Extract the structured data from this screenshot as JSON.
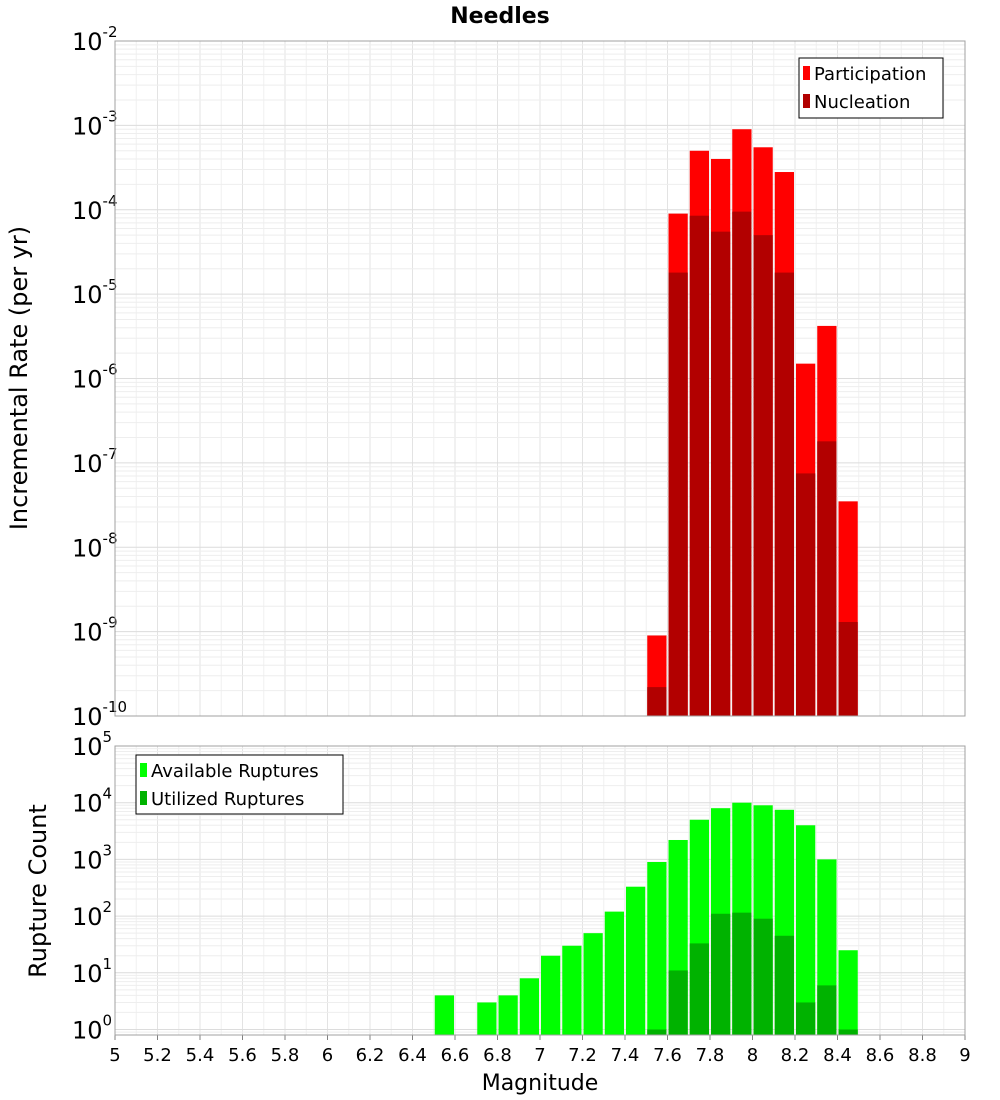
{
  "chart_data": [
    {
      "type": "bar",
      "title": "Needles",
      "xlabel": "Magnitude",
      "ylabel": "Incremental Rate (per yr)",
      "yscale": "log",
      "ylim": [
        1e-10,
        0.01
      ],
      "xlim": [
        5,
        9
      ],
      "bin_width": 0.1,
      "y_tick_bases": [
        "10",
        "10",
        "10",
        "10",
        "10",
        "10",
        "10",
        "10",
        "10"
      ],
      "y_tick_exponents": [
        "-10",
        "-9",
        "-8",
        "-7",
        "-6",
        "-5",
        "-4",
        "-3",
        "-2"
      ],
      "legend_position": "top-right",
      "series": [
        {
          "name": "Participation",
          "color": "#ff0000",
          "x": [
            7.55,
            7.65,
            7.75,
            7.85,
            7.95,
            8.05,
            8.15,
            8.25,
            8.35,
            8.45
          ],
          "values": [
            9e-10,
            9e-05,
            0.0005,
            0.0004,
            0.0009,
            0.00055,
            0.00028,
            1.5e-06,
            4.2e-06,
            3.5e-08
          ]
        },
        {
          "name": "Nucleation",
          "color": "#b20000",
          "x": [
            7.55,
            7.65,
            7.75,
            7.85,
            7.95,
            8.05,
            8.15,
            8.25,
            8.35,
            8.45
          ],
          "values": [
            2.2e-10,
            1.8e-05,
            8.5e-05,
            5.5e-05,
            9.5e-05,
            5e-05,
            1.8e-05,
            7.5e-08,
            1.8e-07,
            1.3e-09
          ]
        }
      ]
    },
    {
      "type": "bar",
      "title": "",
      "xlabel": "Magnitude",
      "ylabel": "Rupture Count",
      "yscale": "log",
      "ylim": [
        0.8,
        100000.0
      ],
      "xlim": [
        5,
        9
      ],
      "bin_width": 0.1,
      "categories": [
        "5",
        "5.2",
        "5.4",
        "5.6",
        "5.8",
        "6",
        "6.2",
        "6.4",
        "6.6",
        "6.8",
        "7",
        "7.2",
        "7.4",
        "7.6",
        "7.8",
        "8",
        "8.2",
        "8.4",
        "8.6",
        "8.8",
        "9"
      ],
      "y_tick_bases": [
        "10",
        "10",
        "10",
        "10",
        "10",
        "10"
      ],
      "y_tick_exponents": [
        "0",
        "1",
        "2",
        "3",
        "4",
        "5"
      ],
      "legend_position": "top-left",
      "series": [
        {
          "name": "Available Ruptures",
          "color": "#00ff00",
          "x": [
            6.55,
            6.75,
            6.85,
            6.95,
            7.05,
            7.15,
            7.25,
            7.35,
            7.45,
            7.55,
            7.65,
            7.75,
            7.85,
            7.95,
            8.05,
            8.15,
            8.25,
            8.35,
            8.45
          ],
          "values": [
            4,
            3,
            4,
            8,
            20,
            30,
            50,
            120,
            330,
            900,
            2200,
            5000,
            8000,
            10000,
            9000,
            7500,
            4000,
            1000,
            25
          ]
        },
        {
          "name": "Utilized Ruptures",
          "color": "#00b200",
          "x": [
            7.55,
            7.65,
            7.75,
            7.85,
            7.95,
            8.05,
            8.15,
            8.25,
            8.35,
            8.45
          ],
          "values": [
            1,
            11,
            33,
            110,
            115,
            90,
            45,
            3,
            6,
            1
          ]
        }
      ]
    }
  ]
}
